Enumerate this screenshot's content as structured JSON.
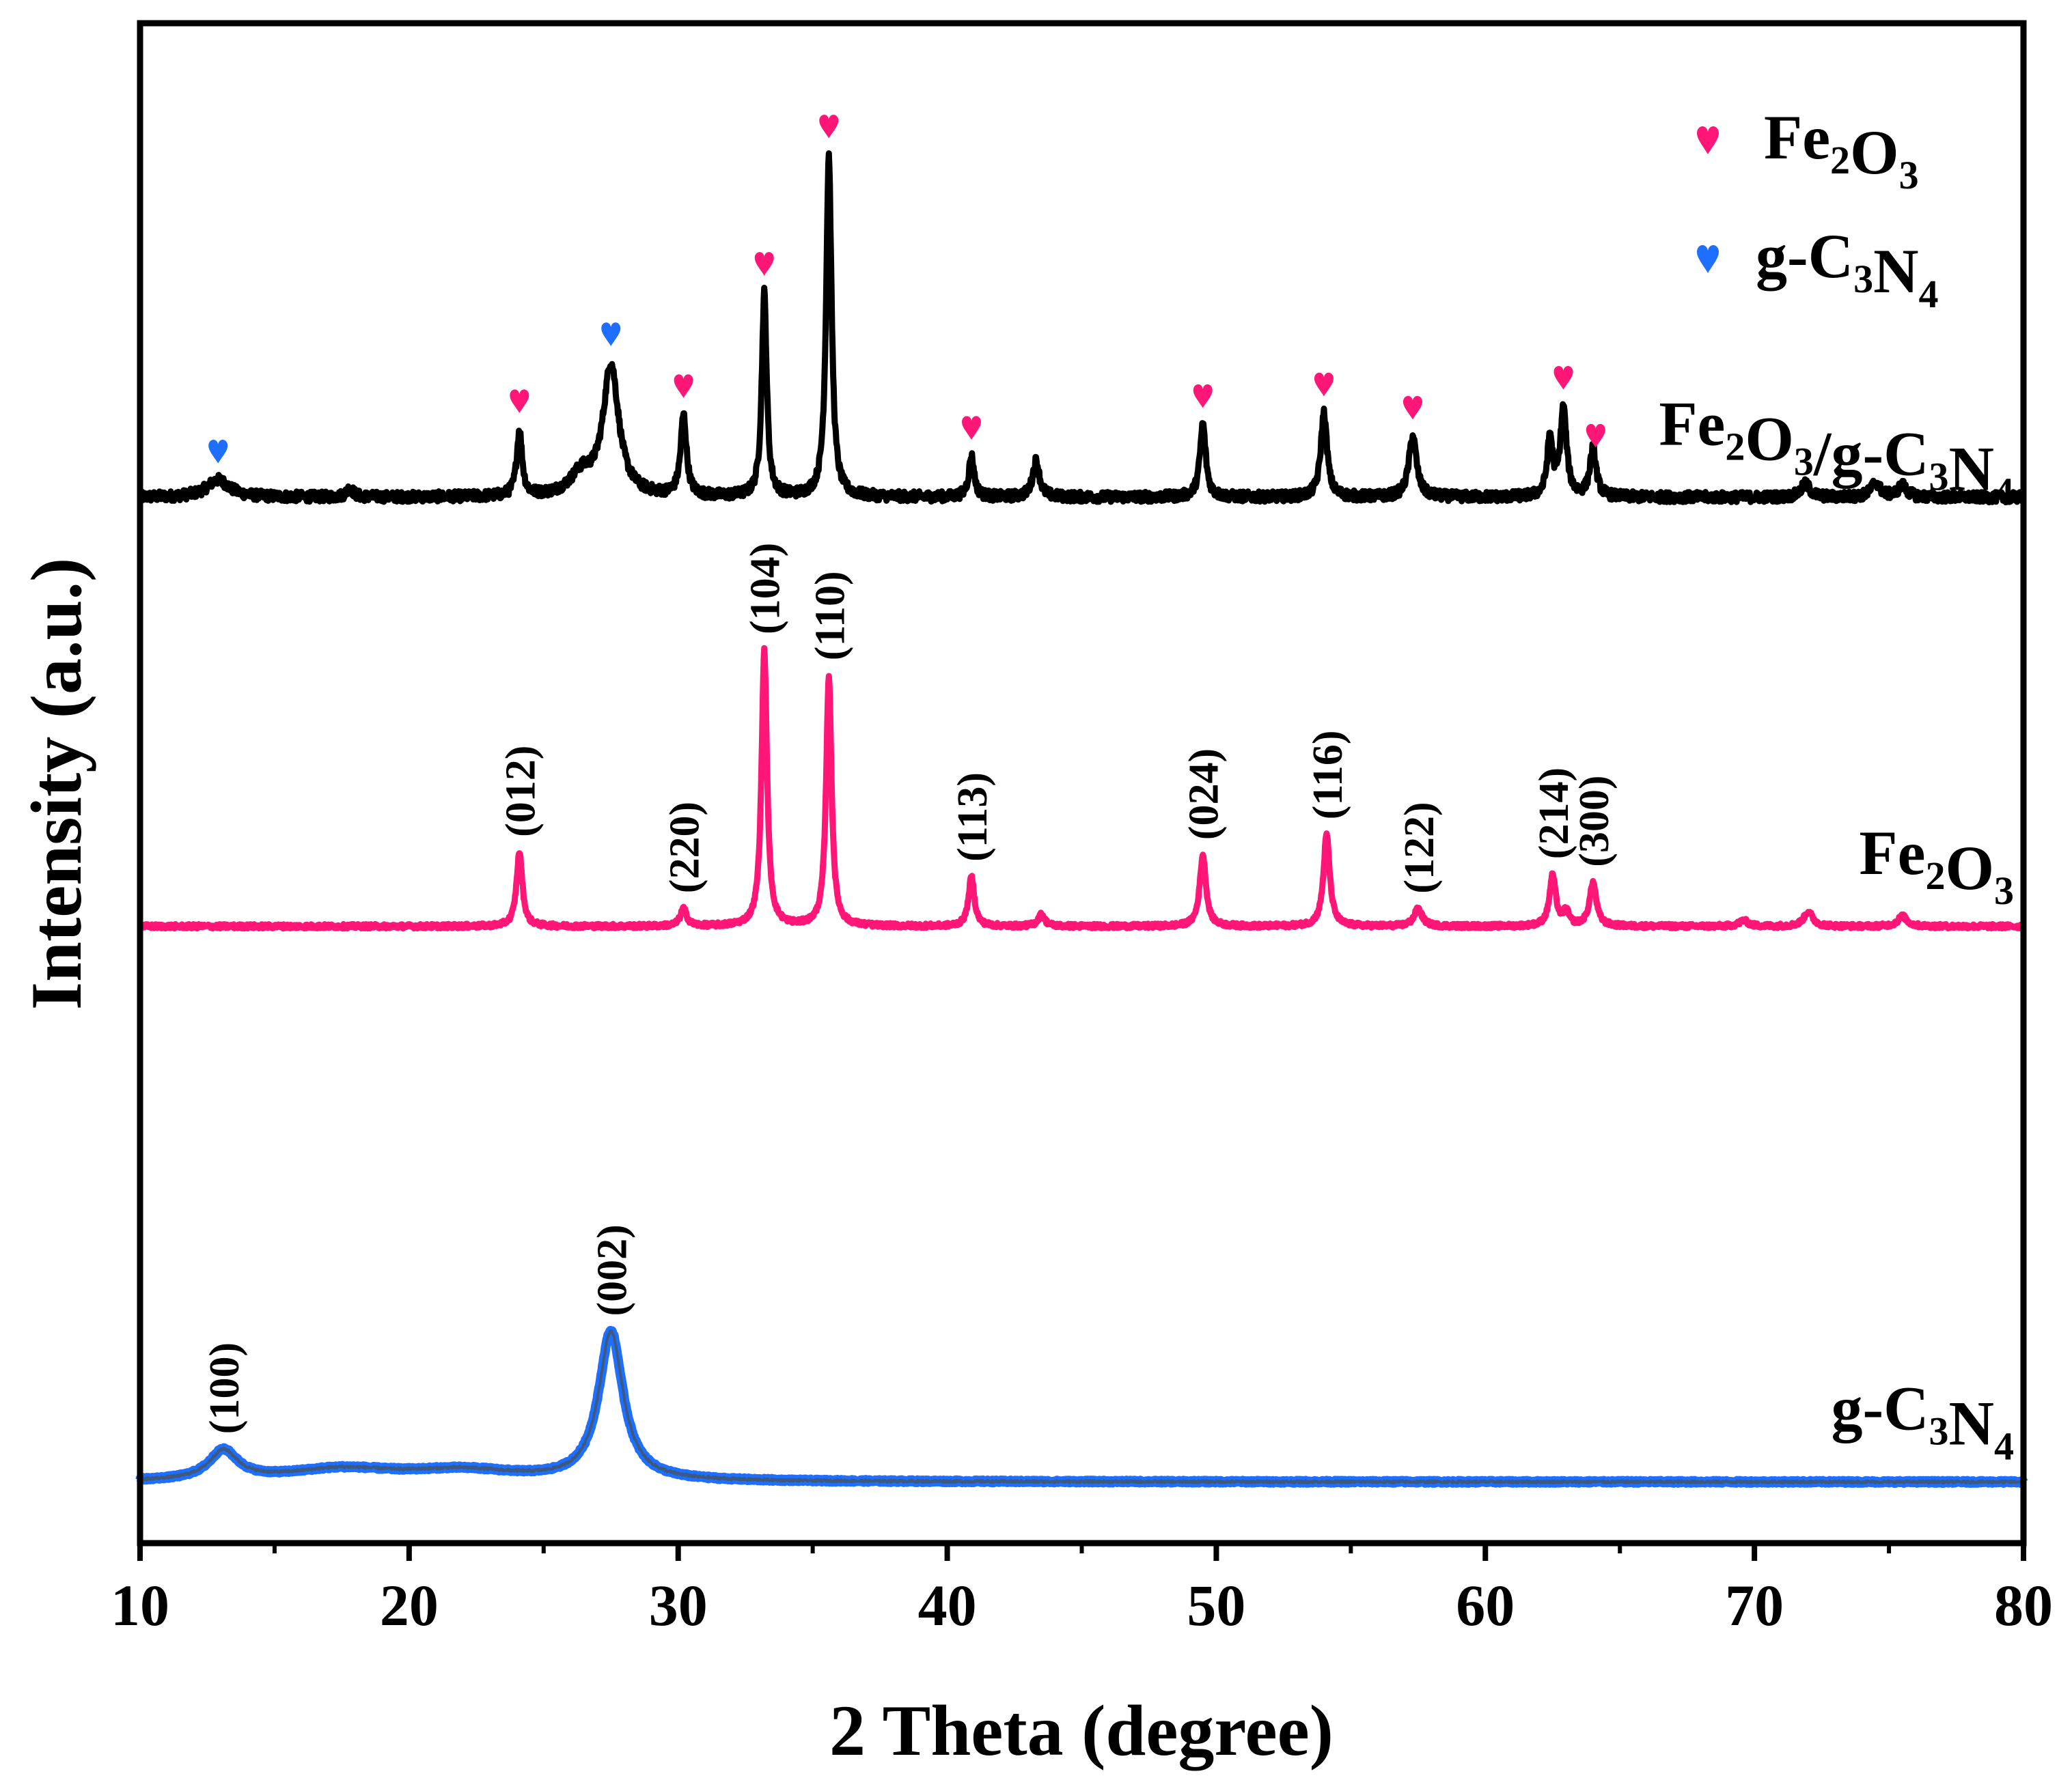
{
  "chart_data": {
    "type": "line",
    "xlabel": "2 Theta (degree)",
    "ylabel": "Intensity (a.u.)",
    "xlim": [
      10,
      80
    ],
    "ylim": [
      0,
      100
    ],
    "xticks": [
      "10",
      "20",
      "30",
      "40",
      "50",
      "60",
      "70",
      "80"
    ],
    "legend": {
      "position": "top-right",
      "entries": [
        {
          "name": "Fe2O3",
          "base": "Fe",
          "sub1": "2",
          "mid": "O",
          "sub2": "3",
          "tail": "",
          "sub3": "",
          "color": "#ff1677"
        },
        {
          "name": "g-C3N4",
          "base": "g-C",
          "sub1": "3",
          "mid": "N",
          "sub2": "4",
          "tail": "",
          "sub3": "",
          "color": "#1e6fff"
        }
      ]
    },
    "series": [
      {
        "name": "Fe2O3/g-C3N4",
        "label": {
          "base": "Fe",
          "sub1": "2",
          "mid": "O",
          "sub2": "3",
          "tail": "/g-C",
          "sub3": "3",
          "end": "N",
          "sub4": "4"
        },
        "color": "#000000",
        "baseline": 70.5,
        "noise": 0.35,
        "peaks": [
          {
            "x": 12.9,
            "h": 1.2,
            "w": 0.5
          },
          {
            "x": 17.8,
            "h": 0.6,
            "w": 0.15
          },
          {
            "x": 24.1,
            "h": 4.5,
            "w": 0.12
          },
          {
            "x": 26.4,
            "h": 1.4,
            "w": 0.5
          },
          {
            "x": 27.5,
            "h": 9.0,
            "w": 0.35
          },
          {
            "x": 30.2,
            "h": 5.5,
            "w": 0.13
          },
          {
            "x": 33.2,
            "h": 14.0,
            "w": 0.11
          },
          {
            "x": 35.6,
            "h": 23.5,
            "w": 0.12
          },
          {
            "x": 40.9,
            "h": 2.8,
            "w": 0.12
          },
          {
            "x": 43.3,
            "h": 2.5,
            "w": 0.15
          },
          {
            "x": 49.5,
            "h": 5.0,
            "w": 0.13
          },
          {
            "x": 54.0,
            "h": 5.8,
            "w": 0.14
          },
          {
            "x": 57.3,
            "h": 4.2,
            "w": 0.17
          },
          {
            "x": 62.4,
            "h": 4.0,
            "w": 0.12
          },
          {
            "x": 62.9,
            "h": 6.0,
            "w": 0.14
          },
          {
            "x": 64.0,
            "h": 3.3,
            "w": 0.14
          },
          {
            "x": 71.9,
            "h": 0.9,
            "w": 0.2
          },
          {
            "x": 74.5,
            "h": 1.0,
            "w": 0.2
          },
          {
            "x": 75.5,
            "h": 0.8,
            "w": 0.2
          }
        ],
        "markers": [
          {
            "x": 12.9,
            "phase": "g-C3N4"
          },
          {
            "x": 24.1,
            "phase": "Fe2O3"
          },
          {
            "x": 27.5,
            "phase": "g-C3N4"
          },
          {
            "x": 30.2,
            "phase": "Fe2O3"
          },
          {
            "x": 33.2,
            "phase": "Fe2O3"
          },
          {
            "x": 35.6,
            "phase": "Fe2O3"
          },
          {
            "x": 40.9,
            "phase": "Fe2O3"
          },
          {
            "x": 49.5,
            "phase": "Fe2O3"
          },
          {
            "x": 54.0,
            "phase": "Fe2O3"
          },
          {
            "x": 57.3,
            "phase": "Fe2O3"
          },
          {
            "x": 62.9,
            "phase": "Fe2O3"
          },
          {
            "x": 64.1,
            "phase": "Fe2O3"
          }
        ]
      },
      {
        "name": "Fe2O3",
        "label": {
          "base": "Fe",
          "sub1": "2",
          "mid": "O",
          "sub2": "3",
          "tail": "",
          "sub3": "",
          "end": "",
          "sub4": ""
        },
        "color": "#ff1677",
        "baseline": 41.0,
        "noise": 0.15,
        "peaks": [
          {
            "x": 24.1,
            "h": 5.1,
            "w": 0.13
          },
          {
            "x": 30.2,
            "h": 1.2,
            "w": 0.14
          },
          {
            "x": 33.2,
            "h": 19.0,
            "w": 0.12
          },
          {
            "x": 35.6,
            "h": 17.2,
            "w": 0.12
          },
          {
            "x": 40.9,
            "h": 3.4,
            "w": 0.13
          },
          {
            "x": 43.5,
            "h": 0.8,
            "w": 0.15
          },
          {
            "x": 49.5,
            "h": 4.9,
            "w": 0.14
          },
          {
            "x": 54.1,
            "h": 6.3,
            "w": 0.14
          },
          {
            "x": 57.5,
            "h": 1.2,
            "w": 0.18
          },
          {
            "x": 62.5,
            "h": 3.5,
            "w": 0.14
          },
          {
            "x": 63.0,
            "h": 1.0,
            "w": 0.12
          },
          {
            "x": 64.0,
            "h": 3.0,
            "w": 0.15
          },
          {
            "x": 69.6,
            "h": 0.4,
            "w": 0.2
          },
          {
            "x": 72.0,
            "h": 1.0,
            "w": 0.2
          },
          {
            "x": 75.5,
            "h": 0.7,
            "w": 0.2
          }
        ],
        "annotations": [
          {
            "x": 24.1,
            "text": "(012)"
          },
          {
            "x": 30.2,
            "text": "(220)"
          },
          {
            "x": 33.2,
            "text": "(104)"
          },
          {
            "x": 35.6,
            "text": "(110)"
          },
          {
            "x": 40.9,
            "text": "(113)"
          },
          {
            "x": 49.5,
            "text": "(024)"
          },
          {
            "x": 54.1,
            "text": "(116)"
          },
          {
            "x": 57.5,
            "text": "(122)"
          },
          {
            "x": 62.5,
            "text": "(214)"
          },
          {
            "x": 64.0,
            "text": "(300)"
          }
        ]
      },
      {
        "name": "g-C3N4",
        "label": {
          "base": "g-C",
          "sub1": "3",
          "mid": "N",
          "sub2": "4",
          "tail": "",
          "sub3": "",
          "end": "",
          "sub4": ""
        },
        "color": "#1e6fff",
        "baseline": 2.8,
        "noise": 0.08,
        "peaks": [
          {
            "x": 13.1,
            "h": 2.0,
            "w": 0.65
          },
          {
            "x": 17.5,
            "h": 0.8,
            "w": 2.5
          },
          {
            "x": 22.0,
            "h": 0.7,
            "w": 2.5
          },
          {
            "x": 27.5,
            "h": 10.2,
            "w": 0.55
          }
        ],
        "annotations": [
          {
            "x": 13.1,
            "text": "(100)"
          },
          {
            "x": 27.5,
            "text": "(002)"
          }
        ]
      }
    ]
  }
}
